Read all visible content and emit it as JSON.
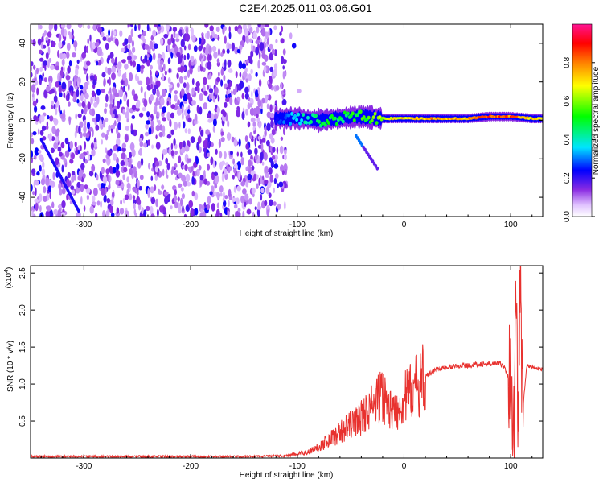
{
  "title": "C2E4.2025.011.03.06.G01",
  "colors": {
    "snr_line": "#e8312e",
    "spectrogram_points": "#6a1bd8",
    "colormap": [
      "#ffffff",
      "#d9b3ff",
      "#8a2be2",
      "#0000ff",
      "#00e5ff",
      "#00ff00",
      "#ffff00",
      "#ff8000",
      "#ff0000",
      "#ff1493"
    ]
  },
  "chart_data": [
    {
      "type": "heatmap",
      "xlabel": "Height of straight line (km)",
      "ylabel": "Frequency (Hz)",
      "xlim": [
        -350,
        130
      ],
      "ylim": [
        -50,
        50
      ],
      "x_ticks": [
        -300,
        -200,
        -100,
        0,
        100
      ],
      "y_ticks": [
        -40,
        -20,
        0,
        20,
        40
      ],
      "colorbar": {
        "label": "Normalized spectral amplitude",
        "range": [
          0,
          1
        ],
        "ticks": [
          "0.0",
          "0.2",
          "0.4",
          "0.6",
          "0.8"
        ]
      },
      "features": {
        "noise_region_x": [
          -350,
          -110
        ],
        "signal_band": [
          {
            "x": -120,
            "f": 1,
            "amp": 0.25
          },
          {
            "x": -100,
            "f": 1,
            "amp": 0.4
          },
          {
            "x": -80,
            "f": 0,
            "amp": 0.5
          },
          {
            "x": -60,
            "f": 1,
            "amp": 0.5
          },
          {
            "x": -40,
            "f": 2,
            "amp": 0.55
          },
          {
            "x": -20,
            "f": 1,
            "amp": 0.65
          },
          {
            "x": 0,
            "f": 1,
            "amp": 0.75
          },
          {
            "x": 20,
            "f": 1,
            "amp": 0.8
          },
          {
            "x": 40,
            "f": 1,
            "amp": 0.8
          },
          {
            "x": 60,
            "f": 1,
            "amp": 0.8
          },
          {
            "x": 80,
            "f": 2,
            "amp": 0.9
          },
          {
            "x": 100,
            "f": 2,
            "amp": 0.85
          },
          {
            "x": 120,
            "f": 1,
            "amp": 0.75
          }
        ],
        "diagonal_trace": [
          {
            "x": -340,
            "f": -10
          },
          {
            "x": -305,
            "f": -47
          }
        ],
        "branch_trace": [
          {
            "x": -45,
            "f": -8
          },
          {
            "x": -25,
            "f": -25
          }
        ]
      }
    },
    {
      "type": "line",
      "xlabel": "Height of straight line (km)",
      "ylabel": "SNR (10 * v/v)",
      "y_multiplier": "(x10",
      "y_multiplier_exp": "4",
      "y_multiplier_close": ")",
      "xlim": [
        -350,
        130
      ],
      "ylim": [
        0,
        2.6
      ],
      "x_ticks": [
        -300,
        -200,
        -100,
        0,
        100
      ],
      "y_ticks": [
        0.5,
        1.0,
        1.5,
        2.0,
        2.5
      ],
      "series": [
        {
          "x": [
            -350,
            -300,
            -250,
            -200,
            -150,
            -110,
            -90,
            -80,
            -70,
            -60,
            -50,
            -40,
            -30,
            -20,
            -10,
            0,
            10,
            20,
            30,
            40,
            50,
            60,
            70,
            80,
            90,
            95,
            100,
            103,
            105,
            107,
            109,
            111,
            115,
            120,
            130
          ],
          "values": [
            0.02,
            0.02,
            0.02,
            0.02,
            0.02,
            0.03,
            0.08,
            0.15,
            0.25,
            0.35,
            0.45,
            0.55,
            0.7,
            0.85,
            0.6,
            0.8,
            0.95,
            1.1,
            1.2,
            1.22,
            1.25,
            1.25,
            1.27,
            1.27,
            1.28,
            1.2,
            1.0,
            0.4,
            2.3,
            0.5,
            2.6,
            0.6,
            1.25,
            1.23,
            1.2
          ]
        }
      ]
    }
  ]
}
